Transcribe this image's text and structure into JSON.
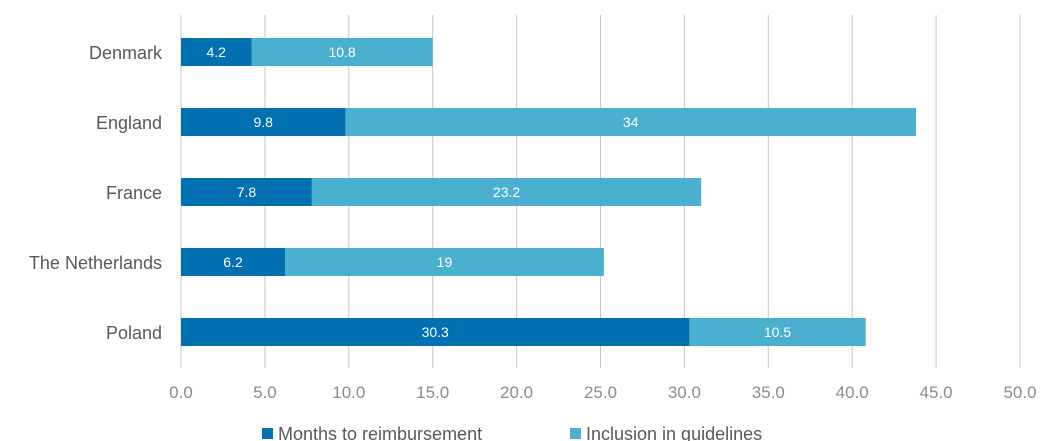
{
  "chart_data": {
    "type": "bar",
    "orientation": "horizontal",
    "stacked": true,
    "categories": [
      "Denmark",
      "England",
      "France",
      "The Netherlands",
      "Poland"
    ],
    "series": [
      {
        "name": "Months to reimbursement",
        "values": [
          4.2,
          9.8,
          7.8,
          6.2,
          30.3
        ],
        "labels": [
          "4.2",
          "9.8",
          "7.8",
          "6.2",
          "30.3"
        ],
        "color": "#0070b0"
      },
      {
        "name": "Inclusion in guidelines",
        "values": [
          10.8,
          34,
          23.2,
          19,
          10.5
        ],
        "labels": [
          "10.8",
          "34",
          "23.2",
          "19",
          "10.5"
        ],
        "color": "#4bafd0"
      }
    ],
    "x_ticks": [
      "0.0",
      "5.0",
      "10.0",
      "15.0",
      "20.0",
      "25.0",
      "30.0",
      "35.0",
      "40.0",
      "45.0",
      "50.0"
    ],
    "xlim": [
      0,
      50
    ],
    "grid": true,
    "legend_position": "bottom"
  }
}
